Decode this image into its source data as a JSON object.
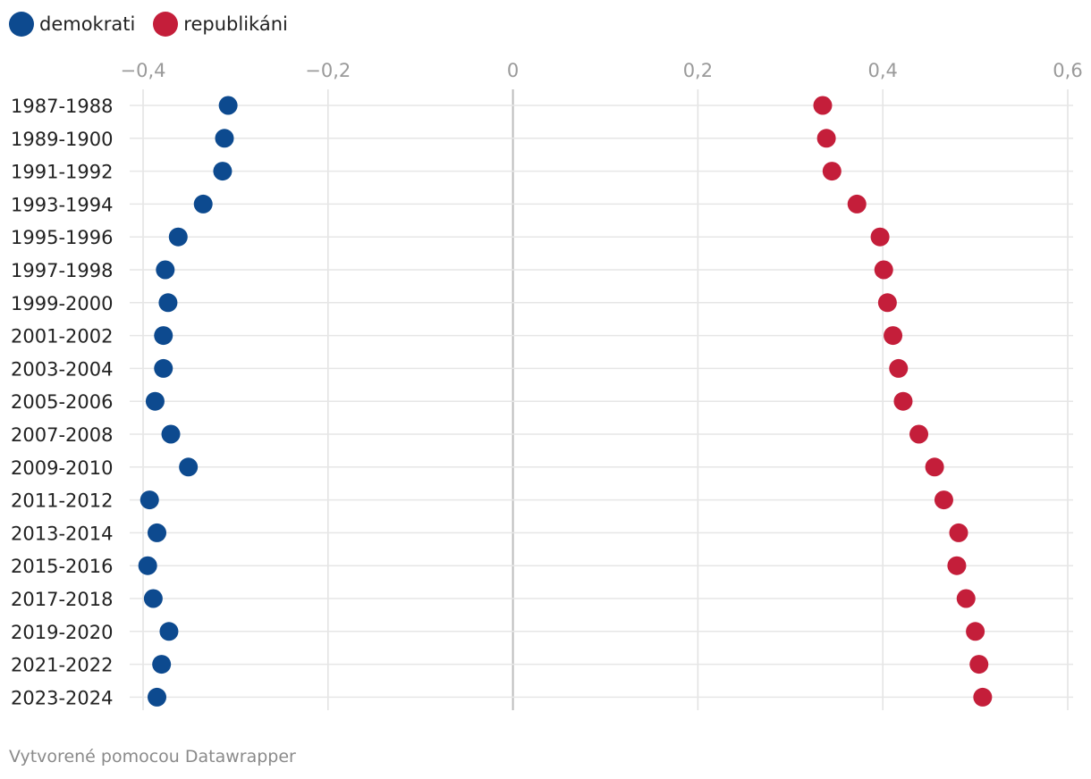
{
  "legend": [
    {
      "label": "demokrati",
      "color": "#0d4a8f"
    },
    {
      "label": "republikáni",
      "color": "#c41e3a"
    }
  ],
  "footer": {
    "credit": "Vytvorené pomocou Datawrapper"
  },
  "chart_data": {
    "type": "scatter",
    "title": "",
    "xlabel": "",
    "ylabel": "",
    "xlim": [
      -0.4,
      0.6
    ],
    "xticks": [
      {
        "value": -0.4,
        "label": "−0,4"
      },
      {
        "value": -0.2,
        "label": "−0,2"
      },
      {
        "value": 0,
        "label": "0"
      },
      {
        "value": 0.2,
        "label": "0,2"
      },
      {
        "value": 0.4,
        "label": "0,4"
      },
      {
        "value": 0.6,
        "label": "0,6"
      }
    ],
    "grid": true,
    "legend_position": "top-left",
    "categories": [
      "1987-1988",
      "1989-1900",
      "1991-1992",
      "1993-1994",
      "1995-1996",
      "1997-1998",
      "1999-2000",
      "2001-2002",
      "2003-2004",
      "2005-2006",
      "2007-2008",
      "2009-2010",
      "2011-2012",
      "2013-2014",
      "2015-2016",
      "2017-2018",
      "2019-2020",
      "2021-2022",
      "2023-2024"
    ],
    "series": [
      {
        "name": "demokrati",
        "color": "#0d4a8f",
        "values": [
          -0.308,
          -0.312,
          -0.314,
          -0.335,
          -0.362,
          -0.376,
          -0.373,
          -0.378,
          -0.378,
          -0.387,
          -0.37,
          -0.351,
          -0.393,
          -0.385,
          -0.395,
          -0.389,
          -0.372,
          -0.38,
          -0.385
        ]
      },
      {
        "name": "republikáni",
        "color": "#c41e3a",
        "values": [
          0.335,
          0.339,
          0.345,
          0.372,
          0.397,
          0.401,
          0.405,
          0.411,
          0.417,
          0.422,
          0.439,
          0.456,
          0.466,
          0.482,
          0.48,
          0.49,
          0.5,
          0.504,
          0.508
        ]
      }
    ]
  }
}
